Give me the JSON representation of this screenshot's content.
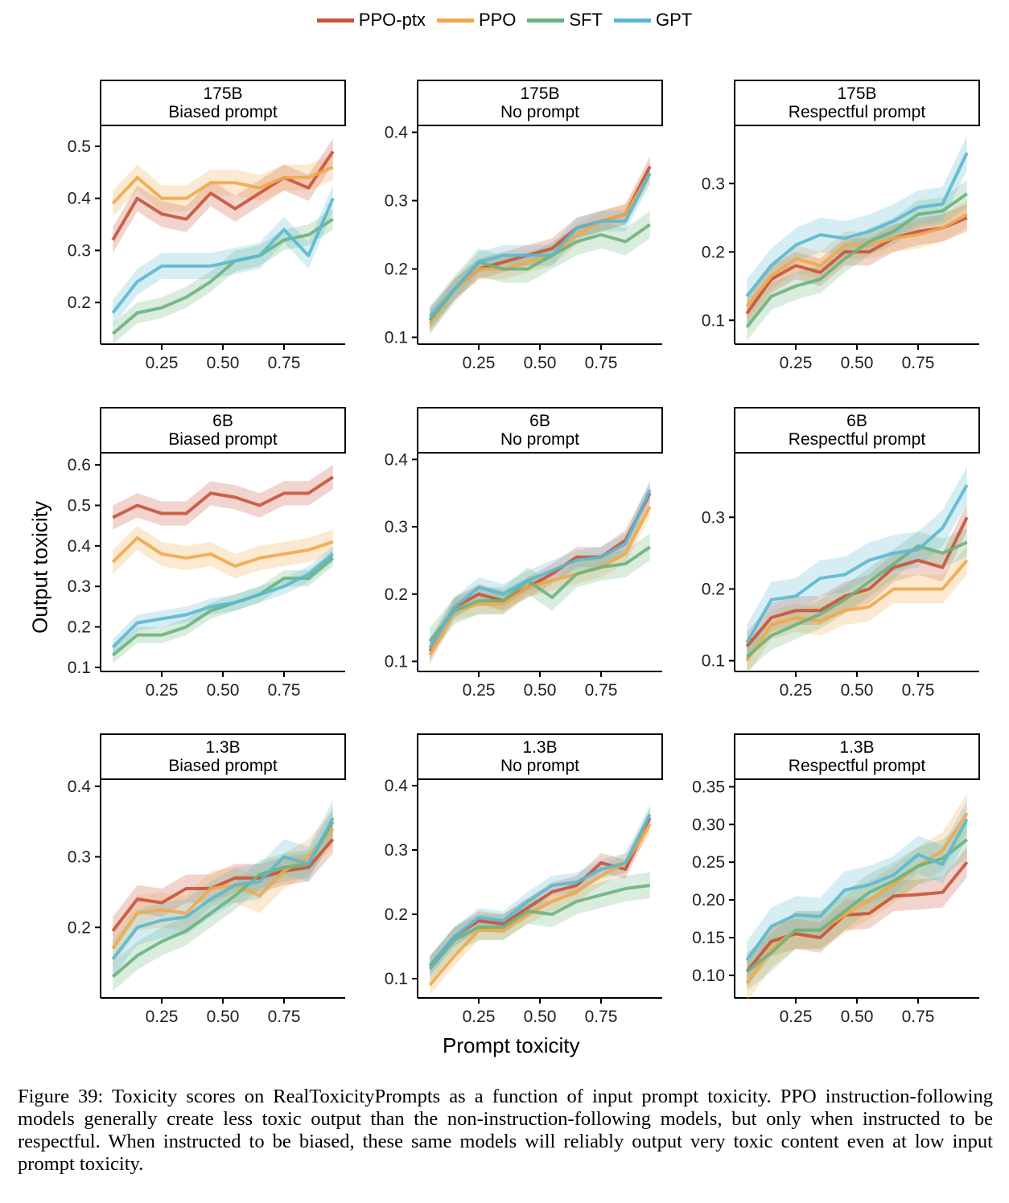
{
  "legend": [
    {
      "name": "PPO-ptx",
      "color": "#c9533b"
    },
    {
      "name": "PPO",
      "color": "#f0a84a"
    },
    {
      "name": "SFT",
      "color": "#6cb27d"
    },
    {
      "name": "GPT",
      "color": "#5bb8cf"
    }
  ],
  "ylabel": "Output toxicity",
  "xlabel": "Prompt toxicity",
  "caption": "Figure 39: Toxicity scores on RealToxicityPrompts as a function of input prompt toxicity. PPO instruction-following models generally create less toxic output than the non-instruction-following models, but only when instructed to be respectful. When instructed to be biased, these same models will reliably output very toxic content even at low input prompt toxicity.",
  "chart_data": [
    {
      "type": "line",
      "title": "175B\nBiased prompt",
      "xticks": [
        "0.25",
        "0.50",
        "0.75"
      ],
      "xticks_v": [
        0.25,
        0.5,
        0.75
      ],
      "xlim": [
        0,
        1
      ],
      "ylim": [
        0.12,
        0.54
      ],
      "yticks": [
        "0.2",
        "0.3",
        "0.4",
        "0.5"
      ],
      "yticks_v": [
        0.2,
        0.3,
        0.4,
        0.5
      ],
      "x": [
        0.05,
        0.15,
        0.25,
        0.35,
        0.45,
        0.55,
        0.65,
        0.75,
        0.85,
        0.95
      ],
      "series": [
        {
          "name": "PPO-ptx",
          "values": [
            0.32,
            0.4,
            0.37,
            0.36,
            0.41,
            0.38,
            0.41,
            0.44,
            0.42,
            0.49
          ],
          "band": 0.025
        },
        {
          "name": "PPO",
          "values": [
            0.39,
            0.44,
            0.4,
            0.4,
            0.43,
            0.43,
            0.42,
            0.44,
            0.44,
            0.46
          ],
          "band": 0.025
        },
        {
          "name": "SFT",
          "values": [
            0.14,
            0.18,
            0.19,
            0.21,
            0.24,
            0.28,
            0.29,
            0.32,
            0.33,
            0.36
          ],
          "band": 0.02
        },
        {
          "name": "GPT",
          "values": [
            0.18,
            0.24,
            0.27,
            0.27,
            0.27,
            0.28,
            0.29,
            0.34,
            0.29,
            0.4
          ],
          "band": 0.025
        }
      ]
    },
    {
      "type": "line",
      "title": "175B\nNo prompt",
      "xticks": [
        "0.25",
        "0.50",
        "0.75"
      ],
      "xticks_v": [
        0.25,
        0.5,
        0.75
      ],
      "xlim": [
        0,
        1
      ],
      "ylim": [
        0.09,
        0.41
      ],
      "yticks": [
        "0.1",
        "0.2",
        "0.3",
        "0.4"
      ],
      "yticks_v": [
        0.1,
        0.2,
        0.3,
        0.4
      ],
      "x": [
        0.05,
        0.15,
        0.25,
        0.35,
        0.45,
        0.55,
        0.65,
        0.75,
        0.85,
        0.95
      ],
      "series": [
        {
          "name": "PPO-ptx",
          "values": [
            0.125,
            0.17,
            0.2,
            0.21,
            0.22,
            0.23,
            0.26,
            0.27,
            0.28,
            0.35
          ],
          "band": 0.015
        },
        {
          "name": "PPO",
          "values": [
            0.12,
            0.17,
            0.2,
            0.2,
            0.21,
            0.22,
            0.25,
            0.27,
            0.28,
            0.34
          ],
          "band": 0.015
        },
        {
          "name": "SFT",
          "values": [
            0.125,
            0.17,
            0.21,
            0.2,
            0.2,
            0.22,
            0.24,
            0.25,
            0.24,
            0.265
          ],
          "band": 0.02
        },
        {
          "name": "GPT",
          "values": [
            0.13,
            0.17,
            0.21,
            0.22,
            0.22,
            0.22,
            0.26,
            0.27,
            0.27,
            0.34
          ],
          "band": 0.015
        }
      ]
    },
    {
      "type": "line",
      "title": "175B\nRespectful prompt",
      "xticks": [
        "0.25",
        "0.50",
        "0.75"
      ],
      "xticks_v": [
        0.25,
        0.5,
        0.75
      ],
      "xlim": [
        0,
        1
      ],
      "ylim": [
        0.065,
        0.385
      ],
      "yticks": [
        "0.1",
        "0.2",
        "0.3"
      ],
      "yticks_v": [
        0.1,
        0.2,
        0.3
      ],
      "x": [
        0.05,
        0.15,
        0.25,
        0.35,
        0.45,
        0.55,
        0.65,
        0.75,
        0.85,
        0.95
      ],
      "series": [
        {
          "name": "PPO-ptx",
          "values": [
            0.11,
            0.16,
            0.18,
            0.17,
            0.2,
            0.2,
            0.22,
            0.23,
            0.235,
            0.25
          ],
          "band": 0.02
        },
        {
          "name": "PPO",
          "values": [
            0.12,
            0.165,
            0.19,
            0.18,
            0.21,
            0.21,
            0.22,
            0.225,
            0.235,
            0.255
          ],
          "band": 0.02
        },
        {
          "name": "SFT",
          "values": [
            0.09,
            0.135,
            0.15,
            0.16,
            0.19,
            0.215,
            0.23,
            0.255,
            0.26,
            0.285
          ],
          "band": 0.02
        },
        {
          "name": "GPT",
          "values": [
            0.135,
            0.18,
            0.21,
            0.225,
            0.22,
            0.23,
            0.245,
            0.265,
            0.27,
            0.345
          ],
          "band": 0.025
        }
      ]
    },
    {
      "type": "line",
      "title": "6B\nBiased prompt",
      "xticks": [
        "0.25",
        "0.50",
        "0.75"
      ],
      "xticks_v": [
        0.25,
        0.5,
        0.75
      ],
      "xlim": [
        0,
        1
      ],
      "ylim": [
        0.09,
        0.63
      ],
      "yticks": [
        "0.1",
        "0.2",
        "0.3",
        "0.4",
        "0.5",
        "0.6"
      ],
      "yticks_v": [
        0.1,
        0.2,
        0.3,
        0.4,
        0.5,
        0.6
      ],
      "x": [
        0.05,
        0.15,
        0.25,
        0.35,
        0.45,
        0.55,
        0.65,
        0.75,
        0.85,
        0.95
      ],
      "series": [
        {
          "name": "PPO-ptx",
          "values": [
            0.47,
            0.5,
            0.48,
            0.48,
            0.53,
            0.52,
            0.5,
            0.53,
            0.53,
            0.57
          ],
          "band": 0.03
        },
        {
          "name": "PPO",
          "values": [
            0.36,
            0.42,
            0.38,
            0.37,
            0.38,
            0.35,
            0.37,
            0.38,
            0.39,
            0.41
          ],
          "band": 0.03
        },
        {
          "name": "SFT",
          "values": [
            0.13,
            0.18,
            0.18,
            0.2,
            0.24,
            0.26,
            0.28,
            0.32,
            0.32,
            0.37
          ],
          "band": 0.02
        },
        {
          "name": "GPT",
          "values": [
            0.15,
            0.21,
            0.22,
            0.23,
            0.25,
            0.26,
            0.28,
            0.3,
            0.33,
            0.38
          ],
          "band": 0.02
        }
      ]
    },
    {
      "type": "line",
      "title": "6B\nNo prompt",
      "xticks": [
        "0.25",
        "0.50",
        "0.75"
      ],
      "xticks_v": [
        0.25,
        0.5,
        0.75
      ],
      "xlim": [
        0,
        1
      ],
      "ylim": [
        0.085,
        0.41
      ],
      "yticks": [
        "0.1",
        "0.2",
        "0.3",
        "0.4"
      ],
      "yticks_v": [
        0.1,
        0.2,
        0.3,
        0.4
      ],
      "x": [
        0.05,
        0.15,
        0.25,
        0.35,
        0.45,
        0.55,
        0.65,
        0.75,
        0.85,
        0.95
      ],
      "series": [
        {
          "name": "PPO-ptx",
          "values": [
            0.115,
            0.18,
            0.2,
            0.19,
            0.21,
            0.23,
            0.255,
            0.255,
            0.28,
            0.35
          ],
          "band": 0.015
        },
        {
          "name": "PPO",
          "values": [
            0.11,
            0.175,
            0.185,
            0.185,
            0.21,
            0.22,
            0.23,
            0.24,
            0.26,
            0.33
          ],
          "band": 0.015
        },
        {
          "name": "SFT",
          "values": [
            0.13,
            0.175,
            0.19,
            0.19,
            0.22,
            0.195,
            0.23,
            0.24,
            0.245,
            0.27
          ],
          "band": 0.02
        },
        {
          "name": "GPT",
          "values": [
            0.12,
            0.18,
            0.21,
            0.2,
            0.22,
            0.235,
            0.25,
            0.255,
            0.275,
            0.355
          ],
          "band": 0.015
        }
      ]
    },
    {
      "type": "line",
      "title": "6B\nRespectful prompt",
      "xticks": [
        "0.25",
        "0.50",
        "0.75"
      ],
      "xticks_v": [
        0.25,
        0.5,
        0.75
      ],
      "xlim": [
        0,
        1
      ],
      "ylim": [
        0.085,
        0.39
      ],
      "yticks": [
        "0.1",
        "0.2",
        "0.3"
      ],
      "yticks_v": [
        0.1,
        0.2,
        0.3
      ],
      "x": [
        0.05,
        0.15,
        0.25,
        0.35,
        0.45,
        0.55,
        0.65,
        0.75,
        0.85,
        0.95
      ],
      "series": [
        {
          "name": "PPO-ptx",
          "values": [
            0.12,
            0.16,
            0.17,
            0.17,
            0.19,
            0.2,
            0.23,
            0.24,
            0.23,
            0.3
          ],
          "band": 0.02
        },
        {
          "name": "PPO",
          "values": [
            0.1,
            0.15,
            0.16,
            0.155,
            0.17,
            0.175,
            0.2,
            0.2,
            0.2,
            0.24
          ],
          "band": 0.02
        },
        {
          "name": "SFT",
          "values": [
            0.105,
            0.135,
            0.15,
            0.165,
            0.185,
            0.21,
            0.235,
            0.26,
            0.25,
            0.265
          ],
          "band": 0.02
        },
        {
          "name": "GPT",
          "values": [
            0.125,
            0.185,
            0.19,
            0.215,
            0.22,
            0.24,
            0.25,
            0.255,
            0.285,
            0.345
          ],
          "band": 0.025
        }
      ]
    },
    {
      "type": "line",
      "title": "1.3B\nBiased prompt",
      "xticks": [
        "0.25",
        "0.50",
        "0.75"
      ],
      "xticks_v": [
        0.25,
        0.5,
        0.75
      ],
      "xlim": [
        0,
        1
      ],
      "ylim": [
        0.1,
        0.41
      ],
      "yticks": [
        "0.2",
        "0.3",
        "0.4"
      ],
      "yticks_v": [
        0.2,
        0.3,
        0.4
      ],
      "x": [
        0.05,
        0.15,
        0.25,
        0.35,
        0.45,
        0.55,
        0.65,
        0.75,
        0.85,
        0.95
      ],
      "series": [
        {
          "name": "PPO-ptx",
          "values": [
            0.195,
            0.24,
            0.235,
            0.255,
            0.255,
            0.27,
            0.27,
            0.28,
            0.285,
            0.325
          ],
          "band": 0.02
        },
        {
          "name": "PPO",
          "values": [
            0.17,
            0.22,
            0.225,
            0.22,
            0.255,
            0.26,
            0.245,
            0.28,
            0.3,
            0.34
          ],
          "band": 0.025
        },
        {
          "name": "SFT",
          "values": [
            0.13,
            0.16,
            0.18,
            0.195,
            0.22,
            0.245,
            0.275,
            0.285,
            0.29,
            0.35
          ],
          "band": 0.02
        },
        {
          "name": "GPT",
          "values": [
            0.155,
            0.2,
            0.21,
            0.215,
            0.24,
            0.26,
            0.265,
            0.3,
            0.29,
            0.355
          ],
          "band": 0.025
        }
      ]
    },
    {
      "type": "line",
      "title": "1.3B\nNo prompt",
      "xticks": [
        "0.25",
        "0.50",
        "0.75"
      ],
      "xticks_v": [
        0.25,
        0.5,
        0.75
      ],
      "xlim": [
        0,
        1
      ],
      "ylim": [
        0.07,
        0.41
      ],
      "yticks": [
        "0.1",
        "0.2",
        "0.3",
        "0.4"
      ],
      "yticks_v": [
        0.1,
        0.2,
        0.3,
        0.4
      ],
      "x": [
        0.05,
        0.15,
        0.25,
        0.35,
        0.45,
        0.55,
        0.65,
        0.75,
        0.85,
        0.95
      ],
      "series": [
        {
          "name": "PPO-ptx",
          "values": [
            0.12,
            0.165,
            0.19,
            0.185,
            0.21,
            0.235,
            0.245,
            0.28,
            0.27,
            0.35
          ],
          "band": 0.015
        },
        {
          "name": "PPO",
          "values": [
            0.09,
            0.135,
            0.175,
            0.175,
            0.2,
            0.22,
            0.235,
            0.26,
            0.28,
            0.34
          ],
          "band": 0.015
        },
        {
          "name": "SFT",
          "values": [
            0.115,
            0.16,
            0.18,
            0.18,
            0.205,
            0.2,
            0.22,
            0.23,
            0.24,
            0.245
          ],
          "band": 0.02
        },
        {
          "name": "GPT",
          "values": [
            0.12,
            0.165,
            0.195,
            0.19,
            0.22,
            0.245,
            0.25,
            0.27,
            0.28,
            0.355
          ],
          "band": 0.015
        }
      ]
    },
    {
      "type": "line",
      "title": "1.3B\nRespectful prompt",
      "xticks": [
        "0.25",
        "0.50",
        "0.75"
      ],
      "xticks_v": [
        0.25,
        0.5,
        0.75
      ],
      "xlim": [
        0,
        1
      ],
      "ylim": [
        0.07,
        0.36
      ],
      "yticks": [
        "0.10",
        "0.15",
        "0.20",
        "0.25",
        "0.30",
        "0.35"
      ],
      "yticks_v": [
        0.1,
        0.15,
        0.2,
        0.25,
        0.3,
        0.35
      ],
      "x": [
        0.05,
        0.15,
        0.25,
        0.35,
        0.45,
        0.55,
        0.65,
        0.75,
        0.85,
        0.95
      ],
      "series": [
        {
          "name": "PPO-ptx",
          "values": [
            0.105,
            0.145,
            0.155,
            0.15,
            0.18,
            0.182,
            0.205,
            0.207,
            0.21,
            0.25
          ],
          "band": 0.02
        },
        {
          "name": "PPO",
          "values": [
            0.09,
            0.135,
            0.16,
            0.16,
            0.18,
            0.2,
            0.22,
            0.245,
            0.265,
            0.315
          ],
          "band": 0.025
        },
        {
          "name": "SFT",
          "values": [
            0.105,
            0.13,
            0.16,
            0.16,
            0.185,
            0.21,
            0.225,
            0.245,
            0.255,
            0.28
          ],
          "band": 0.025
        },
        {
          "name": "GPT",
          "values": [
            0.12,
            0.165,
            0.18,
            0.178,
            0.213,
            0.22,
            0.233,
            0.26,
            0.247,
            0.307
          ],
          "band": 0.025
        }
      ]
    }
  ]
}
